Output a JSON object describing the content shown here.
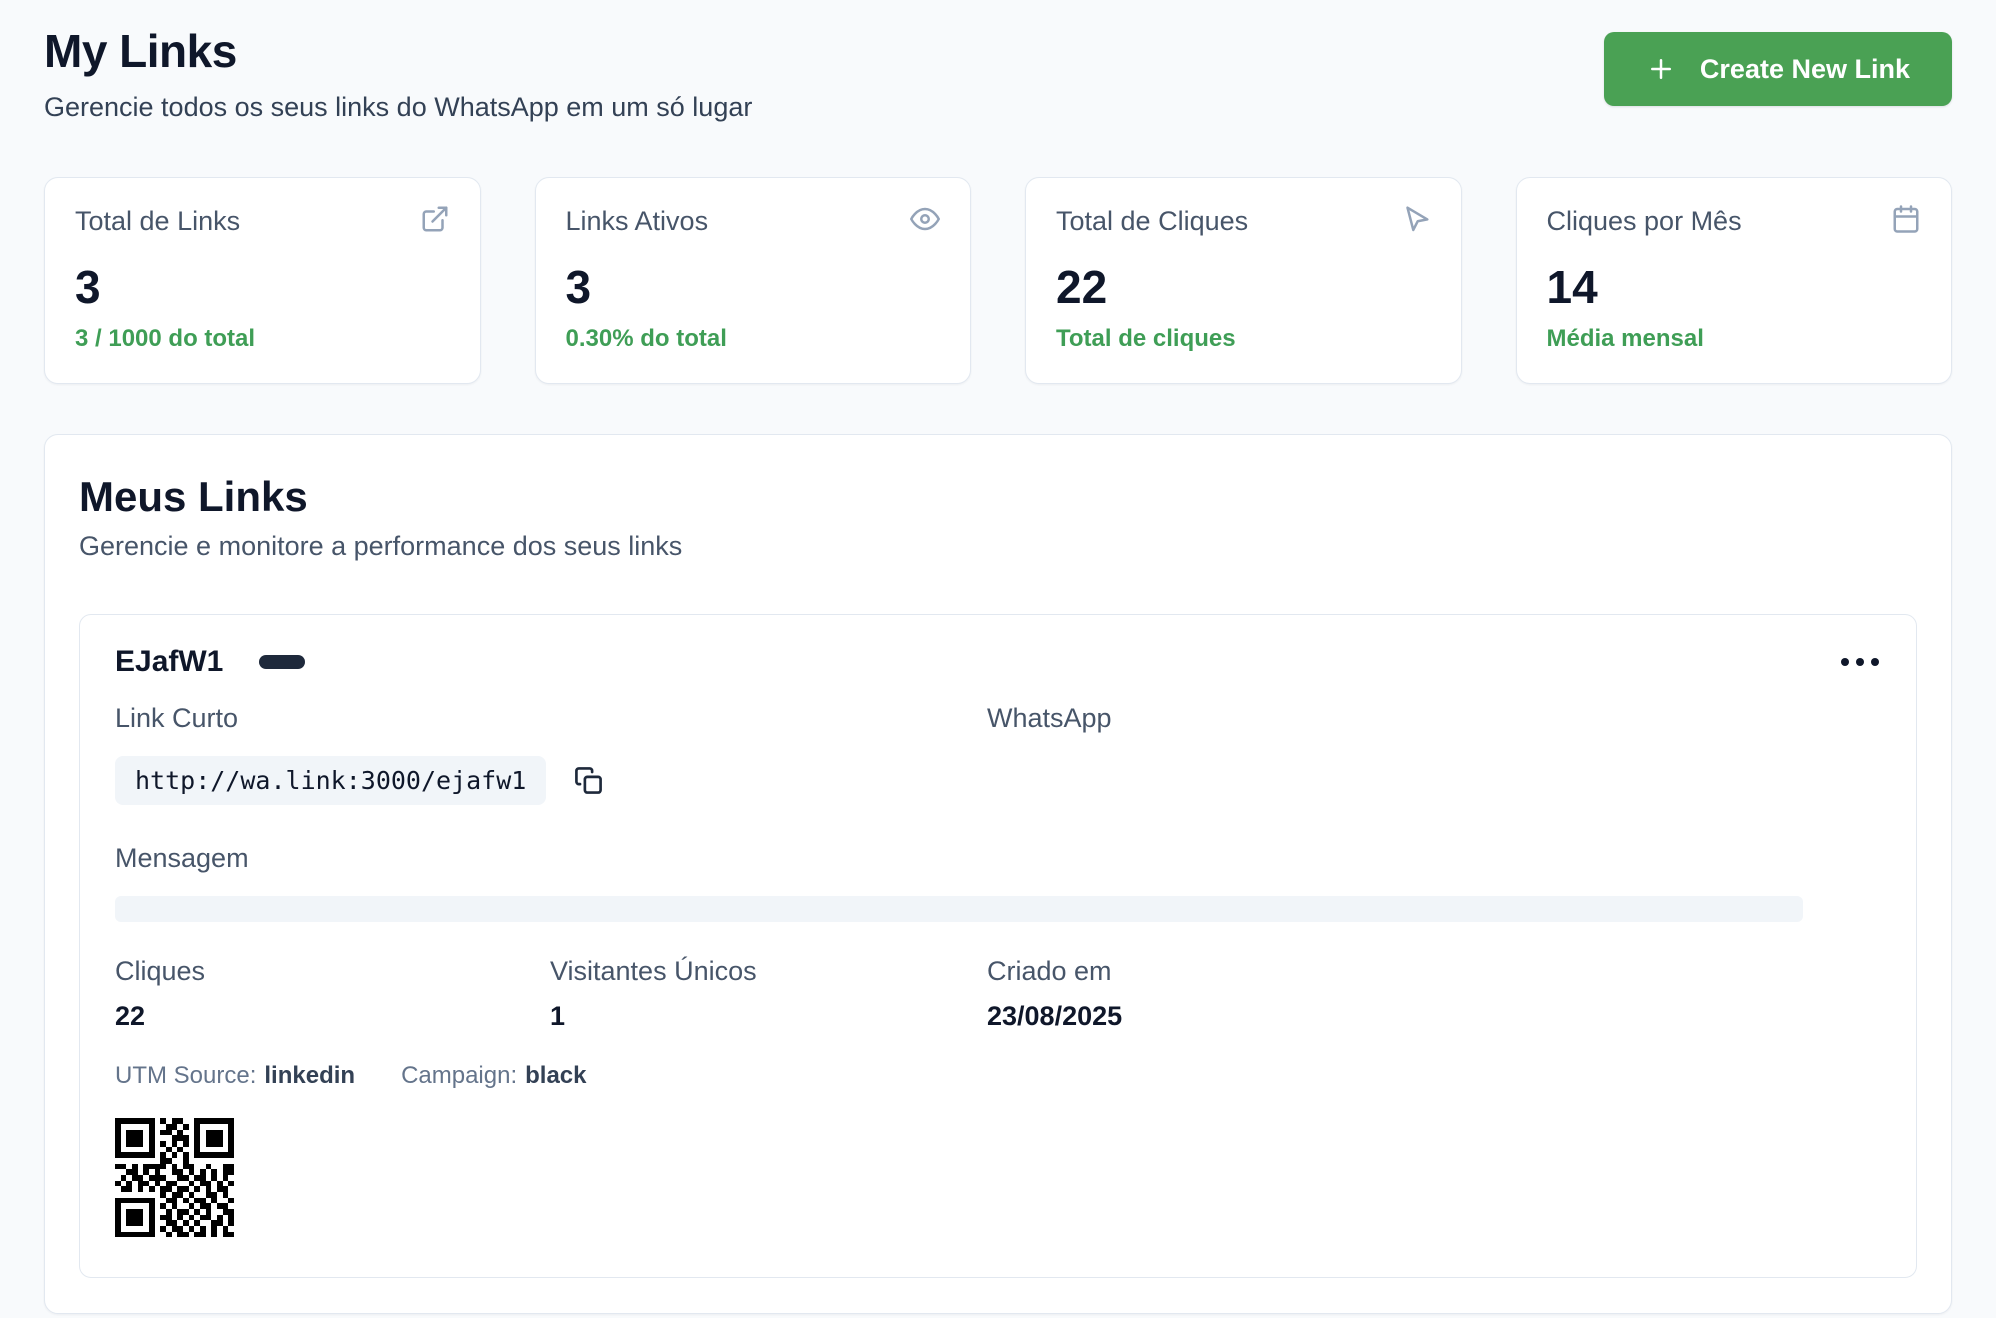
{
  "colors": {
    "accent_green": "#4aa154",
    "green_text": "#3f9e56",
    "heading_dark": "#0f172a",
    "muted_slate": "#475569",
    "card_border": "#e2e8f0",
    "page_bg": "#f8fafc",
    "badge_dark": "#1e293b",
    "field_bg": "#f1f5f9"
  },
  "header": {
    "title": "My Links",
    "subtitle": "Gerencie todos os seus links do WhatsApp em um só lugar",
    "create_button_label": "Create New Link",
    "create_button_icon": "plus-icon"
  },
  "stats": [
    {
      "label": "Total de Links",
      "value": "3",
      "note": "3 / 1000 do total",
      "icon": "external-link-icon"
    },
    {
      "label": "Links Ativos",
      "value": "3",
      "note": "0.30% do total",
      "icon": "eye-icon"
    },
    {
      "label": "Total de Cliques",
      "value": "22",
      "note": "Total de cliques",
      "icon": "mouse-pointer-icon"
    },
    {
      "label": "Cliques por Mês",
      "value": "14",
      "note": "Média mensal",
      "icon": "calendar-icon"
    }
  ],
  "links_section": {
    "title": "Meus Links",
    "subtitle": "Gerencie e monitore a performance dos seus links"
  },
  "link_card": {
    "name": "EJafW1",
    "menu_icon": "ellipsis-horizontal-icon",
    "short_link_label": "Link Curto",
    "short_link": "http://wa.link:3000/ejafw1",
    "copy_icon": "copy-icon",
    "channel": "WhatsApp",
    "message_label": "Mensagem",
    "message_value": "",
    "clicks_label": "Cliques",
    "clicks_value": "22",
    "unique_visitors_label": "Visitantes Únicos",
    "unique_visitors_value": "1",
    "created_label": "Criado em",
    "created_value": "23/08/2025",
    "utm_source_label": "UTM Source:",
    "utm_source_value": "linkedin",
    "campaign_label": "Campaign:",
    "campaign_value": "black",
    "qr_matrix": [
      "111111101011001111111",
      "100000100110101000001",
      "101110101101001011101",
      "101110100011101011101",
      "101110101010101011101",
      "100000100101001000001",
      "111111101010101111111",
      "000000001100100000000",
      "110101111010110010011",
      "001101010011010101011",
      "010110111001101101010",
      "101011010110010110101",
      "011010101101101010110",
      "000000001011010011010",
      "111111100110101101001",
      "100000101010010110110",
      "101110100101101010011",
      "101110101101010110101",
      "101110100110101001101",
      "100000101011010101010",
      "111111100101101101011"
    ]
  }
}
